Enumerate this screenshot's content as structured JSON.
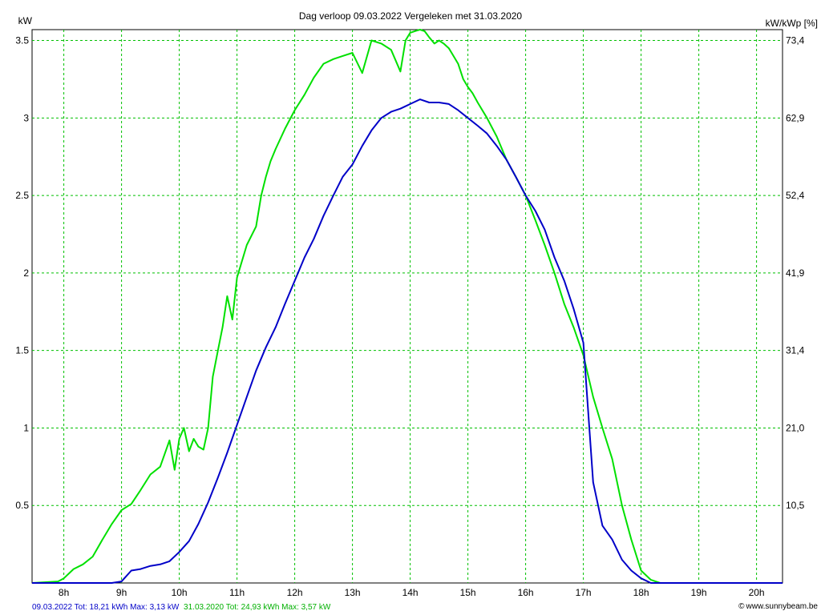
{
  "chart_data": {
    "type": "line",
    "title": "Dag  verloop 09.03.2022   Vergeleken met 31.03.2020",
    "ylabel_left": "kW",
    "ylabel_right": "kW/kWp [%]",
    "ylim": [
      0,
      3.57
    ],
    "xlim": [
      7.45,
      20.45
    ],
    "y_ticks": [
      0.5,
      1,
      1.5,
      2,
      2.5,
      3,
      3.5
    ],
    "y_tick_labels": [
      "0.5",
      "1",
      "1.5",
      "2",
      "2.5",
      "3",
      "3.5"
    ],
    "y_right_tick_labels": [
      "10,5",
      "21,0",
      "31,4",
      "41,9",
      "52,4",
      "62,9",
      "73,4"
    ],
    "x_ticks": [
      8,
      9,
      10,
      11,
      12,
      13,
      14,
      15,
      16,
      17,
      18,
      19,
      20
    ],
    "x_tick_labels": [
      "8h",
      "9h",
      "10h",
      "11h",
      "12h",
      "13h",
      "14h",
      "15h",
      "16h",
      "17h",
      "18h",
      "19h",
      "20h"
    ],
    "grid": true,
    "series": [
      {
        "name": "31.03.2020",
        "color": "#00e000",
        "x": [
          7.45,
          7.9,
          8.0,
          8.17,
          8.33,
          8.5,
          8.67,
          8.83,
          9.0,
          9.17,
          9.33,
          9.5,
          9.67,
          9.83,
          9.92,
          10.0,
          10.08,
          10.17,
          10.25,
          10.33,
          10.42,
          10.5,
          10.58,
          10.67,
          10.75,
          10.83,
          10.92,
          11.0,
          11.17,
          11.33,
          11.42,
          11.5,
          11.58,
          11.67,
          11.83,
          12.0,
          12.17,
          12.33,
          12.5,
          12.67,
          12.83,
          13.0,
          13.17,
          13.33,
          13.5,
          13.67,
          13.83,
          13.92,
          14.0,
          14.08,
          14.17,
          14.25,
          14.33,
          14.42,
          14.5,
          14.58,
          14.67,
          14.75,
          14.83,
          14.92,
          15.0,
          15.08,
          15.17,
          15.33,
          15.5,
          15.67,
          15.83,
          16.0,
          16.17,
          16.33,
          16.5,
          16.67,
          16.83,
          17.0,
          17.17,
          17.33,
          17.5,
          17.67,
          17.83,
          18.0,
          18.17,
          18.33,
          18.5,
          18.67,
          18.83,
          19.0,
          19.17,
          19.33,
          19.5,
          19.67,
          19.83,
          20.0,
          20.05
        ],
        "values": [
          0,
          0.01,
          0.03,
          0.09,
          0.12,
          0.17,
          0.28,
          0.38,
          0.47,
          0.51,
          0.6,
          0.7,
          0.75,
          0.92,
          0.73,
          0.93,
          1.0,
          0.85,
          0.93,
          0.88,
          0.86,
          1.0,
          1.33,
          1.5,
          1.65,
          1.85,
          1.7,
          1.97,
          2.18,
          2.3,
          2.5,
          2.62,
          2.72,
          2.8,
          2.93,
          3.05,
          3.15,
          3.26,
          3.35,
          3.38,
          3.4,
          3.42,
          3.29,
          3.5,
          3.48,
          3.44,
          3.3,
          3.5,
          3.55,
          3.56,
          3.57,
          3.56,
          3.52,
          3.48,
          3.5,
          3.48,
          3.45,
          3.4,
          3.35,
          3.25,
          3.2,
          3.16,
          3.1,
          3.0,
          2.88,
          2.73,
          2.62,
          2.5,
          2.34,
          2.18,
          2.0,
          1.8,
          1.65,
          1.47,
          1.2,
          1.0,
          0.8,
          0.5,
          0.28,
          0.08,
          0.02,
          0,
          0,
          0,
          0,
          0,
          0,
          0,
          0,
          0,
          0,
          0,
          0
        ]
      },
      {
        "name": "09.03.2022",
        "color": "#0000c8",
        "x": [
          7.45,
          8.5,
          8.83,
          9.0,
          9.17,
          9.33,
          9.5,
          9.67,
          9.83,
          10.0,
          10.17,
          10.33,
          10.5,
          10.67,
          10.83,
          11.0,
          11.17,
          11.33,
          11.5,
          11.67,
          11.83,
          12.0,
          12.17,
          12.33,
          12.5,
          12.67,
          12.83,
          13.0,
          13.17,
          13.33,
          13.5,
          13.67,
          13.83,
          14.0,
          14.17,
          14.33,
          14.5,
          14.67,
          14.83,
          15.0,
          15.17,
          15.33,
          15.5,
          15.67,
          15.83,
          16.0,
          16.17,
          16.33,
          16.5,
          16.67,
          16.83,
          17.0,
          17.17,
          17.33,
          17.5,
          17.67,
          17.83,
          18.0,
          18.17,
          18.33,
          18.5,
          18.67,
          18.83,
          19.0,
          19.17,
          19.33,
          19.5,
          20.45
        ],
        "values": [
          0,
          0,
          0,
          0.01,
          0.08,
          0.09,
          0.11,
          0.12,
          0.14,
          0.2,
          0.27,
          0.38,
          0.52,
          0.68,
          0.84,
          1.02,
          1.2,
          1.37,
          1.52,
          1.65,
          1.8,
          1.95,
          2.1,
          2.22,
          2.37,
          2.5,
          2.62,
          2.7,
          2.82,
          2.92,
          3.0,
          3.04,
          3.06,
          3.09,
          3.12,
          3.1,
          3.1,
          3.09,
          3.05,
          3.0,
          2.95,
          2.9,
          2.82,
          2.73,
          2.62,
          2.5,
          2.4,
          2.28,
          2.1,
          1.95,
          1.77,
          1.55,
          0.65,
          0.37,
          0.28,
          0.15,
          0.08,
          0.03,
          0.0,
          0,
          0,
          0,
          0,
          0,
          0,
          0,
          0,
          0
        ]
      }
    ]
  },
  "footer": {
    "stats_2022": "09.03.2022 Tot: 18,21 kWh Max: 3,13 kW",
    "stats_2020": "31.03.2020 Tot: 24,93 kWh Max: 3,57 kW",
    "credit": "www.sunnybeam.be",
    "copyright_symbol": "©"
  }
}
